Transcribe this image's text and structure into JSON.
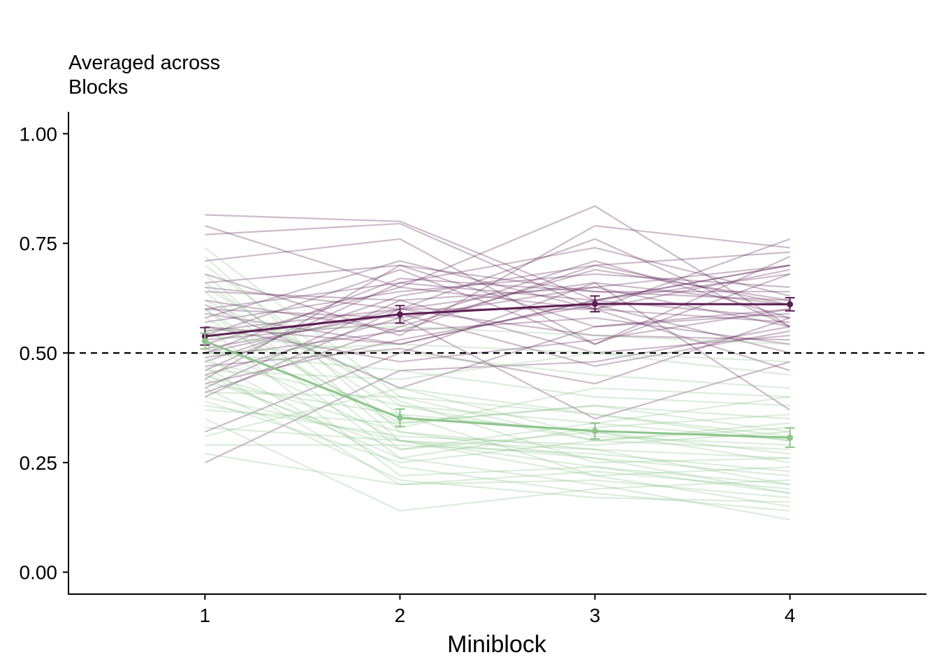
{
  "chart_data": {
    "type": "line",
    "title_lines": [
      "Averaged across",
      "Blocks"
    ],
    "xlabel": "Miniblock",
    "ylabel": "",
    "x": [
      1,
      2,
      3,
      4
    ],
    "x_ticks": [
      "1",
      "2",
      "3",
      "4"
    ],
    "xlim": [
      0.3,
      4.7
    ],
    "ylim": [
      -0.05,
      1.05
    ],
    "y_ticks": [
      "0.00",
      "0.25",
      "0.50",
      "0.75",
      "1.00"
    ],
    "grid": false,
    "legend": "none",
    "reference_line": {
      "y": 0.5,
      "style": "dashed",
      "color": "#000000"
    },
    "series": [
      {
        "color": "#5B1E52",
        "values": [
          0.538,
          0.588,
          0.612,
          0.611
        ],
        "error": [
          0.02,
          0.02,
          0.018,
          0.015
        ]
      },
      {
        "color": "#8CC48B",
        "values": [
          0.527,
          0.352,
          0.322,
          0.307
        ],
        "error": [
          0.018,
          0.02,
          0.018,
          0.022
        ]
      }
    ],
    "subject_lines": [
      {
        "color": "#5B1E52",
        "values": [
          [
            0.815,
            0.8,
            0.62,
            0.58
          ],
          [
            0.79,
            0.65,
            0.835,
            0.56
          ],
          [
            0.77,
            0.795,
            0.6,
            0.76
          ],
          [
            0.71,
            0.76,
            0.52,
            0.68
          ],
          [
            0.68,
            0.54,
            0.79,
            0.74
          ],
          [
            0.66,
            0.7,
            0.64,
            0.62
          ],
          [
            0.65,
            0.6,
            0.76,
            0.56
          ],
          [
            0.64,
            0.62,
            0.65,
            0.7
          ],
          [
            0.62,
            0.55,
            0.7,
            0.73
          ],
          [
            0.61,
            0.42,
            0.56,
            0.59
          ],
          [
            0.6,
            0.66,
            0.74,
            0.63
          ],
          [
            0.59,
            0.52,
            0.62,
            0.7
          ],
          [
            0.58,
            0.71,
            0.6,
            0.57
          ],
          [
            0.57,
            0.64,
            0.68,
            0.65
          ],
          [
            0.56,
            0.48,
            0.53,
            0.6
          ],
          [
            0.55,
            0.6,
            0.66,
            0.61
          ],
          [
            0.54,
            0.69,
            0.52,
            0.72
          ],
          [
            0.53,
            0.57,
            0.71,
            0.58
          ],
          [
            0.52,
            0.65,
            0.6,
            0.69
          ],
          [
            0.51,
            0.59,
            0.47,
            0.55
          ],
          [
            0.5,
            0.67,
            0.64,
            0.64
          ],
          [
            0.49,
            0.55,
            0.58,
            0.52
          ],
          [
            0.48,
            0.63,
            0.7,
            0.61
          ],
          [
            0.47,
            0.51,
            0.43,
            0.58
          ],
          [
            0.46,
            0.66,
            0.62,
            0.7
          ],
          [
            0.45,
            0.58,
            0.65,
            0.56
          ],
          [
            0.44,
            0.7,
            0.56,
            0.6
          ],
          [
            0.43,
            0.53,
            0.61,
            0.5
          ],
          [
            0.42,
            0.62,
            0.5,
            0.54
          ],
          [
            0.41,
            0.56,
            0.69,
            0.62
          ],
          [
            0.4,
            0.6,
            0.54,
            0.53
          ],
          [
            0.32,
            0.5,
            0.66,
            0.37
          ],
          [
            0.25,
            0.46,
            0.48,
            0.56
          ],
          [
            0.6,
            0.58,
            0.35,
            0.48
          ],
          [
            0.56,
            0.52,
            0.62,
            0.68
          ],
          [
            0.5,
            0.6,
            0.6,
            0.46
          ]
        ]
      },
      {
        "color": "#8CC48B",
        "values": [
          [
            0.74,
            0.4,
            0.3,
            0.28
          ],
          [
            0.72,
            0.32,
            0.28,
            0.2
          ],
          [
            0.7,
            0.38,
            0.34,
            0.4
          ],
          [
            0.68,
            0.3,
            0.26,
            0.18
          ],
          [
            0.66,
            0.36,
            0.22,
            0.15
          ],
          [
            0.64,
            0.28,
            0.32,
            0.25
          ],
          [
            0.62,
            0.42,
            0.36,
            0.3
          ],
          [
            0.6,
            0.26,
            0.2,
            0.12
          ],
          [
            0.58,
            0.34,
            0.38,
            0.35
          ],
          [
            0.56,
            0.22,
            0.24,
            0.2
          ],
          [
            0.54,
            0.5,
            0.45,
            0.42
          ],
          [
            0.52,
            0.3,
            0.28,
            0.26
          ],
          [
            0.5,
            0.46,
            0.4,
            0.38
          ],
          [
            0.49,
            0.24,
            0.18,
            0.14
          ],
          [
            0.48,
            0.38,
            0.3,
            0.33
          ],
          [
            0.47,
            0.2,
            0.23,
            0.19
          ],
          [
            0.46,
            0.44,
            0.5,
            0.45
          ],
          [
            0.45,
            0.32,
            0.26,
            0.22
          ],
          [
            0.44,
            0.28,
            0.34,
            0.3
          ],
          [
            0.43,
            0.36,
            0.32,
            0.27
          ],
          [
            0.42,
            0.21,
            0.17,
            0.16
          ],
          [
            0.41,
            0.4,
            0.36,
            0.31
          ],
          [
            0.4,
            0.3,
            0.22,
            0.24
          ],
          [
            0.39,
            0.25,
            0.3,
            0.34
          ],
          [
            0.37,
            0.34,
            0.38,
            0.32
          ],
          [
            0.35,
            0.14,
            0.19,
            0.21
          ],
          [
            0.33,
            0.3,
            0.24,
            0.18
          ],
          [
            0.31,
            0.42,
            0.31,
            0.29
          ],
          [
            0.29,
            0.29,
            0.27,
            0.23
          ],
          [
            0.27,
            0.2,
            0.21,
            0.17
          ],
          [
            0.55,
            0.56,
            0.54,
            0.52
          ],
          [
            0.5,
            0.52,
            0.5,
            0.48
          ],
          [
            0.6,
            0.33,
            0.42,
            0.4
          ],
          [
            0.45,
            0.26,
            0.33,
            0.36
          ],
          [
            0.65,
            0.39,
            0.25,
            0.26
          ],
          [
            0.38,
            0.31,
            0.29,
            0.32
          ]
        ]
      }
    ]
  }
}
